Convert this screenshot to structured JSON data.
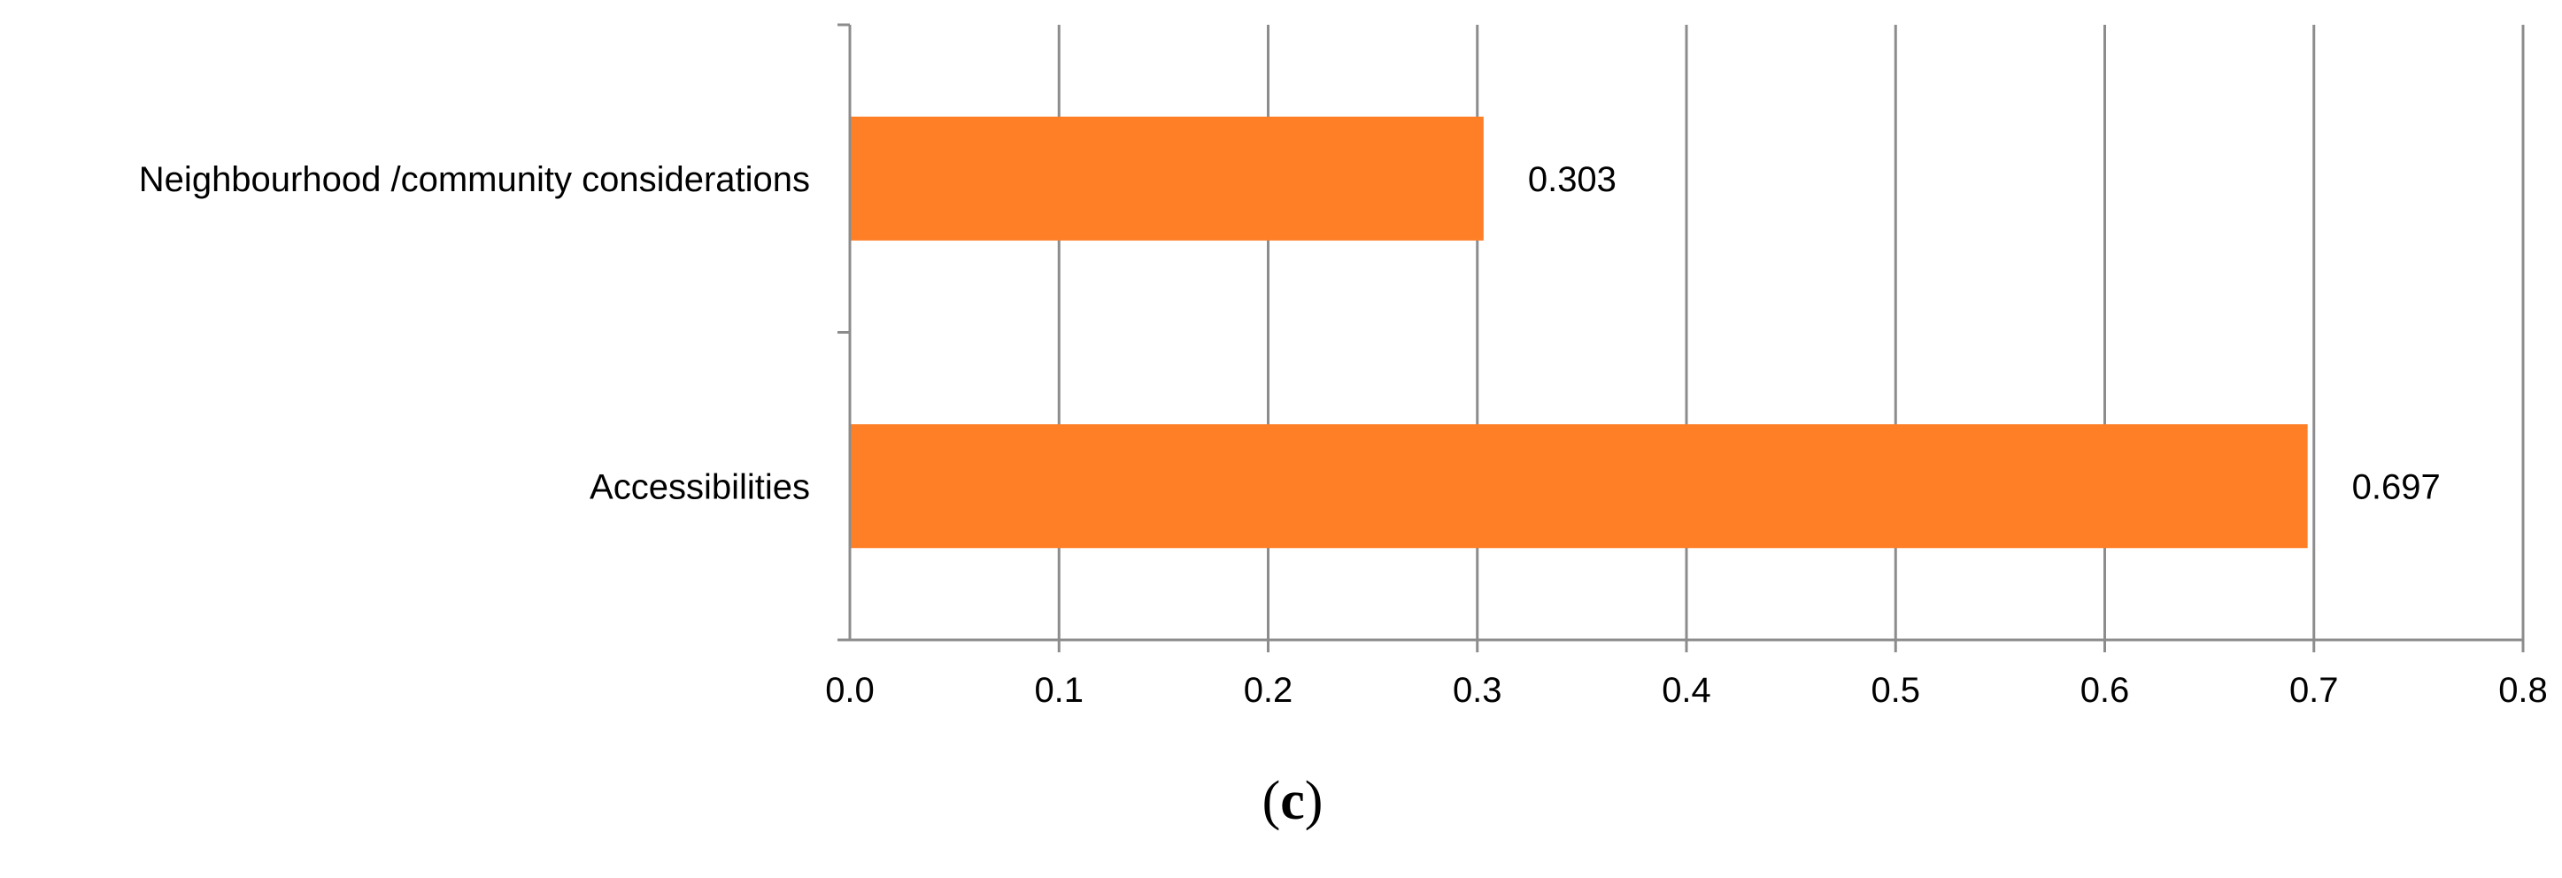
{
  "chart_data": {
    "type": "bar",
    "orientation": "horizontal",
    "categories": [
      "Neighbourhood /community considerations",
      "Accessibilities"
    ],
    "values": [
      0.303,
      0.697
    ],
    "data_labels": [
      "0.303",
      "0.697"
    ],
    "xlim": [
      0,
      0.8
    ],
    "x_ticks": [
      0,
      0.1,
      0.2,
      0.3,
      0.4,
      0.5,
      0.6,
      0.7,
      0.8
    ],
    "x_tick_labels": [
      "0.0",
      "0.1",
      "0.2",
      "0.3",
      "0.4",
      "0.5",
      "0.6",
      "0.7",
      "0.8"
    ],
    "grid": true,
    "legend": "none"
  },
  "colors": {
    "bar": "#FF7F27",
    "grid": "#8C8C8C",
    "axis": "#8C8C8C",
    "text": "#000000"
  },
  "caption": {
    "open": "(",
    "letter": "c",
    "close": ")"
  }
}
